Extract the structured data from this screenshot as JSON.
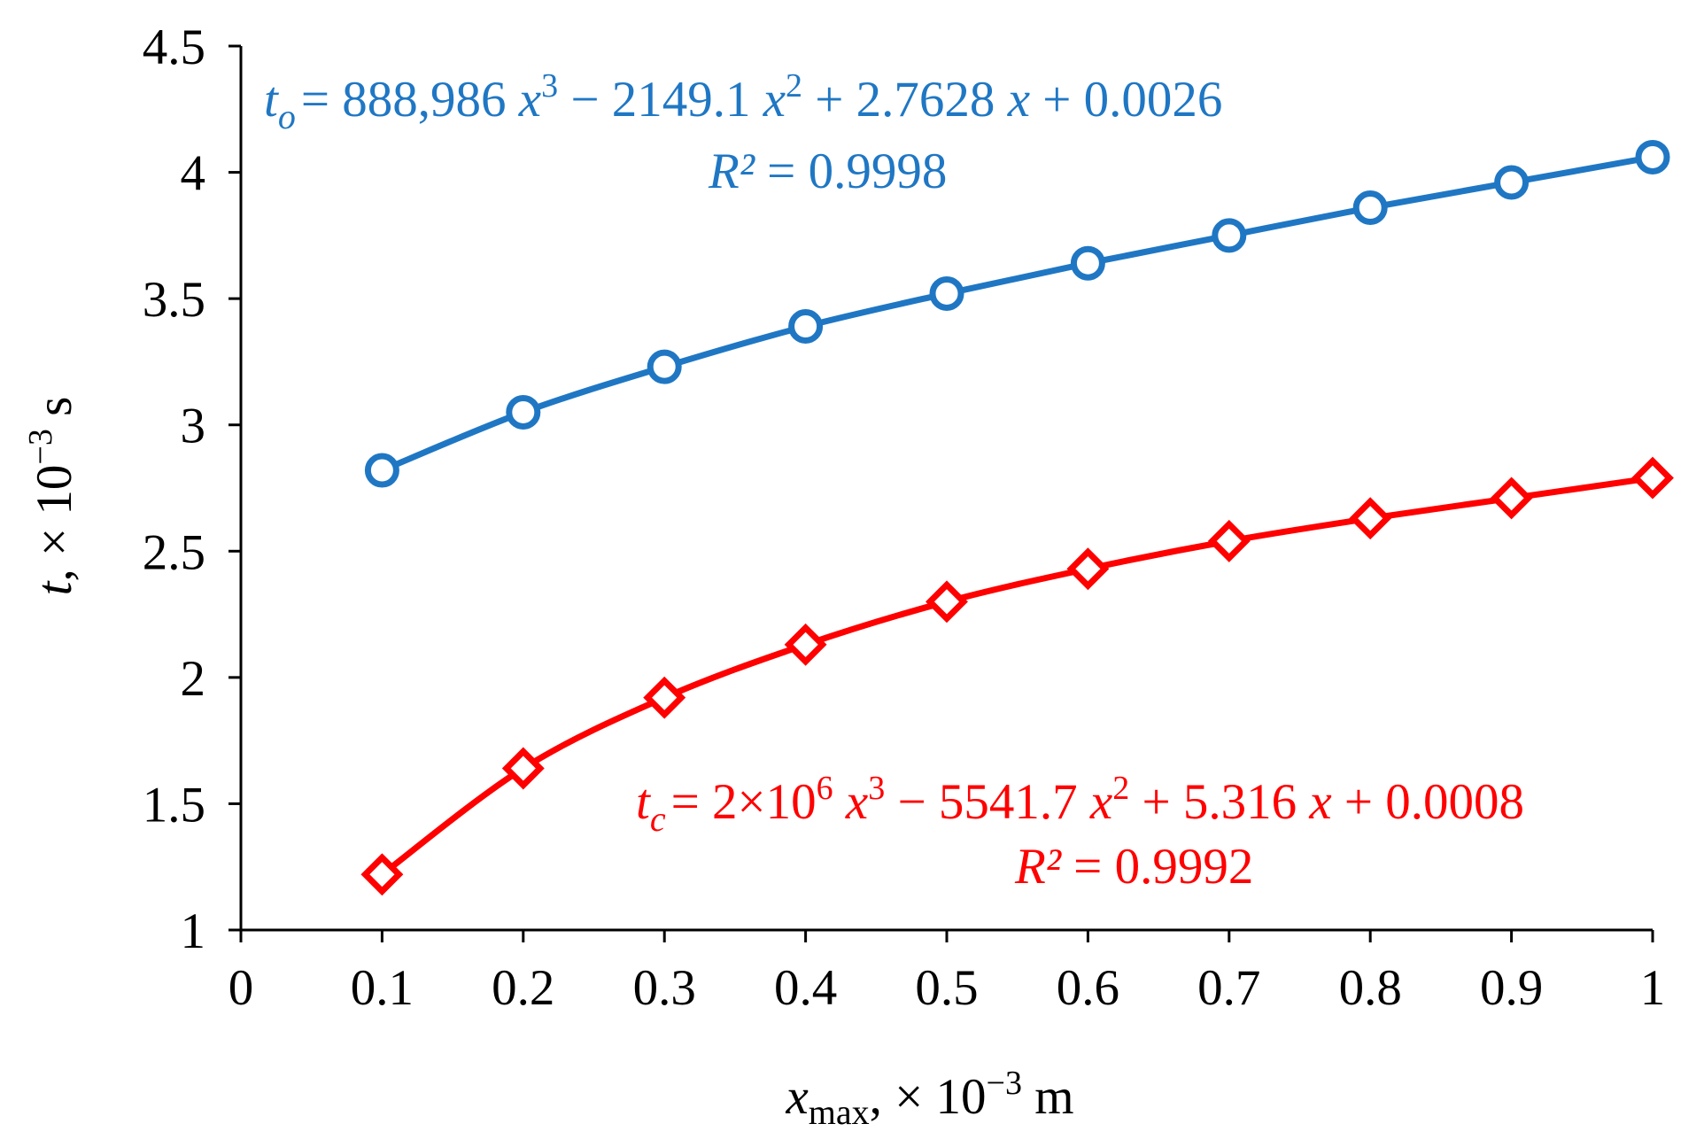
{
  "chart_data": {
    "type": "scatter",
    "x": [
      0.1,
      0.2,
      0.3,
      0.4,
      0.5,
      0.6,
      0.7,
      0.8,
      0.9,
      1.0
    ],
    "xlim": [
      0,
      1
    ],
    "ylim": [
      1,
      4.5
    ],
    "grid": false,
    "x_ticks": [
      "0",
      "0.1",
      "0.2",
      "0.3",
      "0.4",
      "0.5",
      "0.6",
      "0.7",
      "0.8",
      "0.9",
      "1"
    ],
    "y_ticks": [
      "1",
      "1.5",
      "2",
      "2.5",
      "3",
      "3.5",
      "4",
      "4.5"
    ],
    "xlabel": {
      "var": "x",
      "sub": "max",
      "rest": ", × 10",
      "exp": "−3",
      "unit": " m"
    },
    "ylabel": {
      "var": "t",
      "rest": ", × 10",
      "exp": "−3",
      "unit": " s"
    },
    "series": [
      {
        "name": "t_o",
        "color": "#1f77c4",
        "marker": "circle",
        "values": [
          2.82,
          3.05,
          3.23,
          3.39,
          3.52,
          3.64,
          3.75,
          3.86,
          3.96,
          4.06
        ],
        "fit": [
          0.0026,
          2.7628,
          -2149.1,
          888986
        ],
        "equation": {
          "var": "t",
          "sub": "o",
          "a": "= 888,986 ",
          "x1": "x",
          "e1": "3",
          "b": " − 2149.1 ",
          "x2": "x",
          "e2": "2",
          "c": " + 2.7628 ",
          "x3": "x",
          "d": " + 0.0026",
          "r2_var": "R²",
          "r2_val": " = 0.9998"
        }
      },
      {
        "name": "t_c",
        "color": "#ff0000",
        "marker": "diamond",
        "values": [
          1.22,
          1.64,
          1.92,
          2.13,
          2.3,
          2.43,
          2.54,
          2.63,
          2.71,
          2.79
        ],
        "fit": [
          0.0008,
          5.316,
          -5541.7,
          2000000
        ],
        "equation": {
          "var": "t",
          "sub": "c",
          "a": "= 2×10",
          "e0": "6",
          "a2": " ",
          "x1": "x",
          "e1": "3",
          "b": " − 5541.7 ",
          "x2": "x",
          "e2": "2",
          "c": " + 5.316 ",
          "x3": "x",
          "d": " + 0.0008",
          "r2_var": "R²",
          "r2_val": " = 0.9992"
        }
      }
    ]
  }
}
